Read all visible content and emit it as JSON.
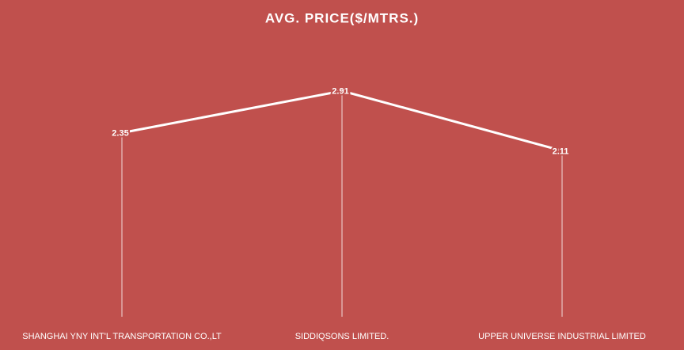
{
  "chart_data": {
    "type": "line",
    "title": "AVG. PRICE($/MTRS.)",
    "categories": [
      "SHANGHAI YNY INT'L TRANSPORTATION  CO.,LT",
      "SIDDIQSONS LIMITED.",
      "UPPER  UNIVERSE INDUSTRIAL LIMITED"
    ],
    "values": [
      2.35,
      2.91,
      2.11
    ],
    "color": "#ffffff",
    "background": "#c0504d",
    "ylim": [
      0,
      3.5
    ],
    "drop_lines": true
  }
}
